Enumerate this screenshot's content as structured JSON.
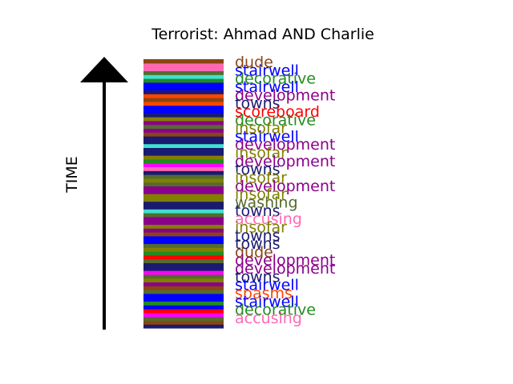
{
  "chart_data": {
    "type": "table",
    "title": "Terrorist: Ahmad AND Charlie",
    "ylabel": "TIME",
    "stripe_colors": [
      "#1a1a70",
      "#8b4513",
      "#556b2f",
      "#ff00ff",
      "#ff0000",
      "#0000ff",
      "#228b22",
      "#0000ff",
      "#0000ff",
      "#556b2f",
      "#8b4513",
      "#8b008b",
      "#808000",
      "#556b2f",
      "#ff00ff",
      "#1a1a70",
      "#1a1a70",
      "#556b2f",
      "#ff0000",
      "#228b22",
      "#808000",
      "#556b2f",
      "#0000ff",
      "#0000ff",
      "#8b4513",
      "#8b008b",
      "#808000",
      "#8b008b",
      "#8b008b",
      "#556b2f",
      "#40e0d0",
      "#1a1a70",
      "#1a1a70",
      "#808000",
      "#808000",
      "#8b008b",
      "#8b008b",
      "#556b2f",
      "#808000",
      "#556b2f",
      "#1a1a70",
      "#ff69b4",
      "#ff00ff",
      "#228b22",
      "#808000",
      "#1a1a70",
      "#1a1a70",
      "#40e0d0",
      "#1a1a70",
      "#1a1a70",
      "#8b4513",
      "#8b008b",
      "#556b2f",
      "#8b008b",
      "#808000",
      "#1a1a70",
      "#0000ff",
      "#0000ff",
      "#ff4500",
      "#8b4513",
      "#ff4500",
      "#1a1a70",
      "#0000ff",
      "#0000ff",
      "#228b22",
      "#40e0d0",
      "#556b2f",
      "#ff69b4",
      "#ff69b4",
      "#8b4513"
    ],
    "labels": [
      {
        "text": "dude",
        "color": "#8b4513"
      },
      {
        "text": "stairwell",
        "color": "#0000ff"
      },
      {
        "text": "decorative",
        "color": "#228b22"
      },
      {
        "text": "stairwell",
        "color": "#0000ff"
      },
      {
        "text": "development",
        "color": "#8b008b"
      },
      {
        "text": "towns",
        "color": "#1a1a70"
      },
      {
        "text": "scoreboard",
        "color": "#ff0000"
      },
      {
        "text": "decorative",
        "color": "#228b22"
      },
      {
        "text": "insofar",
        "color": "#808000"
      },
      {
        "text": "stairwell",
        "color": "#0000ff"
      },
      {
        "text": "development",
        "color": "#8b008b"
      },
      {
        "text": "insofar",
        "color": "#808000"
      },
      {
        "text": "development",
        "color": "#8b008b"
      },
      {
        "text": "towns",
        "color": "#1a1a70"
      },
      {
        "text": "insofar",
        "color": "#808000"
      },
      {
        "text": "development",
        "color": "#8b008b"
      },
      {
        "text": "insofar",
        "color": "#808000"
      },
      {
        "text": "washing",
        "color": "#556b2f"
      },
      {
        "text": "towns",
        "color": "#1a1a70"
      },
      {
        "text": "accusing",
        "color": "#ff69b4"
      },
      {
        "text": "insofar",
        "color": "#808000"
      },
      {
        "text": "towns",
        "color": "#1a1a70"
      },
      {
        "text": "towns",
        "color": "#1a1a70"
      },
      {
        "text": "dude",
        "color": "#8b4513"
      },
      {
        "text": "development",
        "color": "#8b008b"
      },
      {
        "text": "development",
        "color": "#8b008b"
      },
      {
        "text": "towns",
        "color": "#1a1a70"
      },
      {
        "text": "stairwell",
        "color": "#0000ff"
      },
      {
        "text": "spasms",
        "color": "#ff4500"
      },
      {
        "text": "stairwell",
        "color": "#0000ff"
      },
      {
        "text": "decorative",
        "color": "#228b22"
      },
      {
        "text": "accusing",
        "color": "#ff69b4"
      }
    ]
  }
}
